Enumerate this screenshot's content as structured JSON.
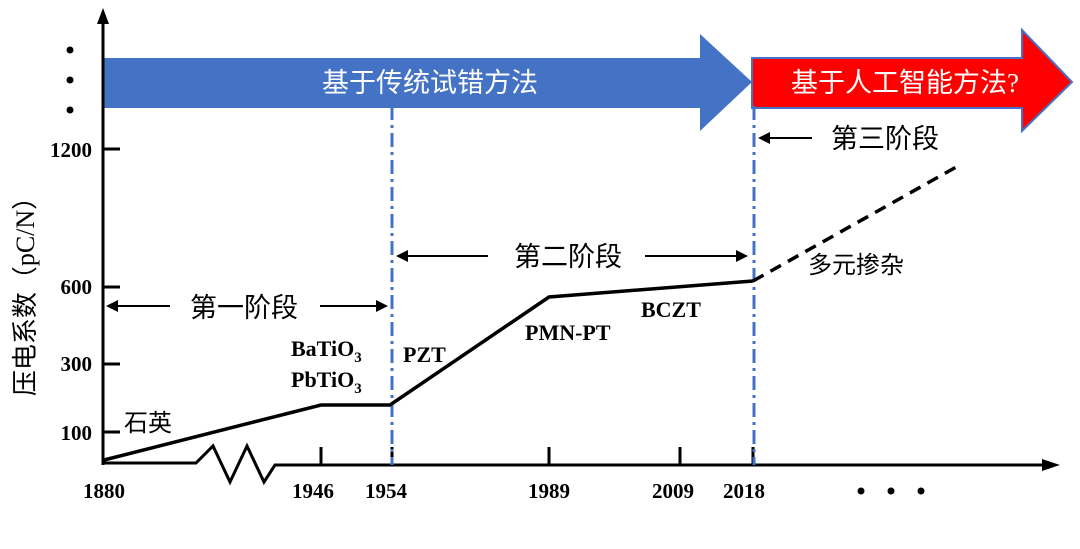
{
  "y_axis": {
    "label": "压电系数（pC/N）",
    "ticks": [
      "100",
      "300",
      "600",
      "1200"
    ],
    "ellipsis": "..."
  },
  "x_axis": {
    "ticks": [
      "1880",
      "1946",
      "1954",
      "1989",
      "2009",
      "2018"
    ],
    "ellipsis": "..."
  },
  "banners": {
    "traditional": "基于传统试错方法",
    "ai": "基于人工智能方法?"
  },
  "stages": {
    "first": "第一阶段",
    "second": "第二阶段",
    "third": "第三阶段"
  },
  "materials": {
    "quartz": "石英",
    "bati": "BaTiO",
    "pbti": "PbTiO",
    "sub3": "3",
    "pzt": "PZT",
    "pmnpt": "PMN-PT",
    "bczt": "BCZT",
    "multi": "多元掺杂"
  },
  "colors": {
    "banner_blue": "#4472c4",
    "banner_red": "#ff0000",
    "divider": "#4472c4",
    "line": "#000000"
  }
}
